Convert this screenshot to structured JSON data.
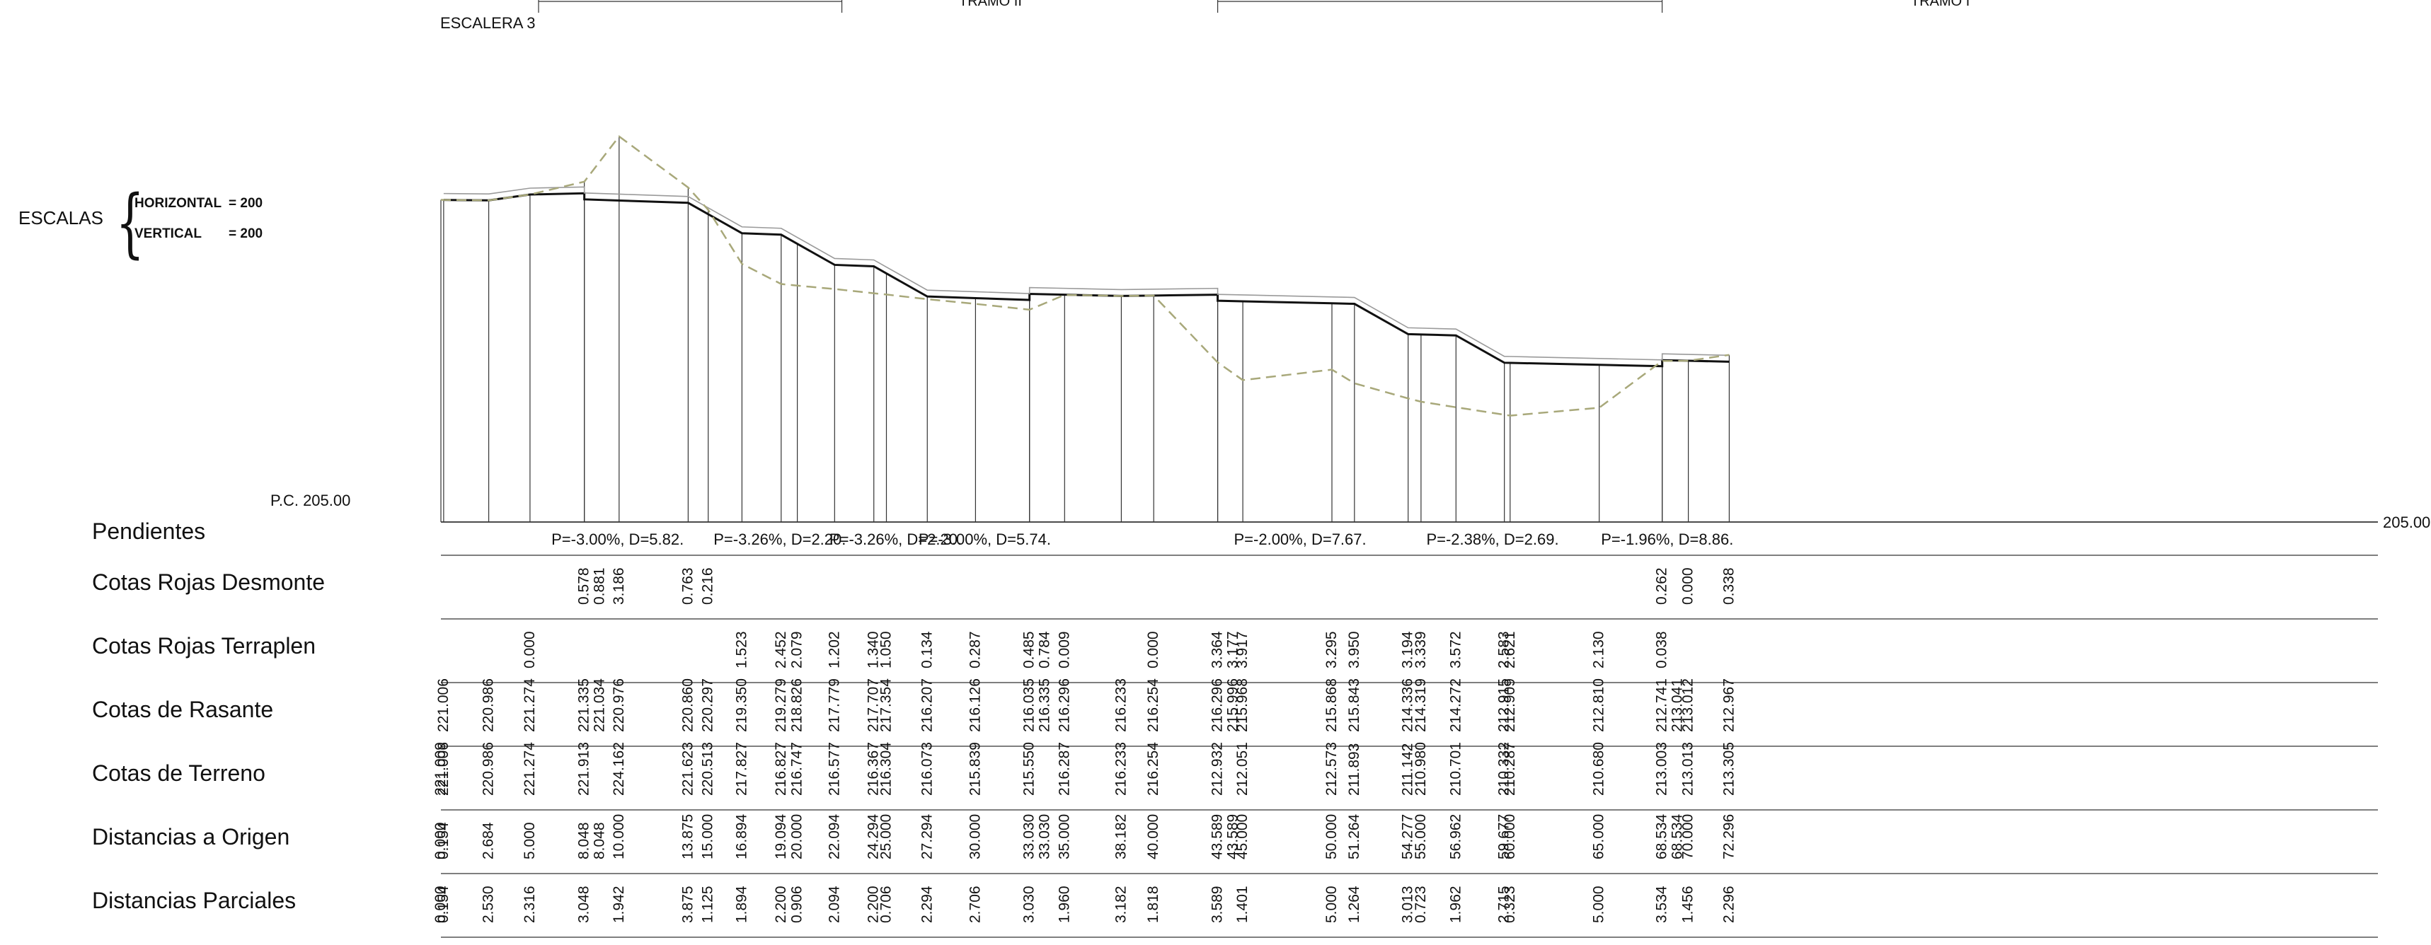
{
  "drawing": {
    "title": "ESCALERA 3",
    "reference_plane": "P.C. 205.00",
    "datum_right": "205.00",
    "tramo_labels": [
      "TRAMO II",
      "TRAMO I"
    ],
    "scales": {
      "label": "ESCALAS",
      "horizontal_label": "HORIZONTAL",
      "horizontal_value": "= 200",
      "vertical_label": "VERTICAL",
      "vertical_value": "= 200"
    }
  },
  "rows": {
    "pendientes": "Pendientes",
    "desmonte": "Cotas Rojas Desmonte",
    "terraplen": "Cotas Rojas Terraplen",
    "rasante": "Cotas de Rasante",
    "terreno": "Cotas de Terreno",
    "origen": "Distancias a Origen",
    "parciales": "Distancias Parciales"
  },
  "pendientes": [
    "P=-3.00%, D=5.82.",
    "P=-3.26%, D=2.20.",
    "P=-3.26%, D=2.20.",
    "P=-3.00%, D=5.74.",
    "P=-2.00%, D=7.67.",
    "P=-2.38%, D=2.69.",
    "P=-1.96%, D=8.86."
  ],
  "stations": [
    {
      "origen": "0.000",
      "parcial": "0.000",
      "terreno": "221.009",
      "rasante": "",
      "desmonte": "",
      "terraplen": ""
    },
    {
      "origen": "0.154",
      "parcial": "0.154",
      "terreno": "221.006",
      "rasante": "221.006",
      "desmonte": "",
      "terraplen": ""
    },
    {
      "origen": "2.684",
      "parcial": "2.530",
      "terreno": "220.986",
      "rasante": "220.986",
      "desmonte": "",
      "terraplen": ""
    },
    {
      "origen": "5.000",
      "parcial": "2.316",
      "terreno": "221.274",
      "rasante": "221.274",
      "desmonte": "",
      "terraplen": "0.000"
    },
    {
      "origen": "8.048",
      "parcial": "3.048",
      "terreno": "221.913",
      "rasante": "221.335",
      "desmonte": "0.578",
      "terraplen": ""
    },
    {
      "origen": "8.048",
      "parcial": "",
      "terreno": "",
      "rasante": "221.034",
      "desmonte": "0.881",
      "terraplen": ""
    },
    {
      "origen": "10.000",
      "parcial": "1.942",
      "terreno": "224.162",
      "rasante": "220.976",
      "desmonte": "3.186",
      "terraplen": ""
    },
    {
      "origen": "13.875",
      "parcial": "3.875",
      "terreno": "221.623",
      "rasante": "220.860",
      "desmonte": "0.763",
      "terraplen": ""
    },
    {
      "origen": "15.000",
      "parcial": "1.125",
      "terreno": "220.513",
      "rasante": "220.297",
      "desmonte": "0.216",
      "terraplen": ""
    },
    {
      "origen": "16.894",
      "parcial": "1.894",
      "terreno": "217.827",
      "rasante": "219.350",
      "desmonte": "",
      "terraplen": "1.523"
    },
    {
      "origen": "19.094",
      "parcial": "2.200",
      "terreno": "216.827",
      "rasante": "219.279",
      "desmonte": "",
      "terraplen": "2.452"
    },
    {
      "origen": "20.000",
      "parcial": "0.906",
      "terreno": "216.747",
      "rasante": "218.826",
      "desmonte": "",
      "terraplen": "2.079"
    },
    {
      "origen": "22.094",
      "parcial": "2.094",
      "terreno": "216.577",
      "rasante": "217.779",
      "desmonte": "",
      "terraplen": "1.202"
    },
    {
      "origen": "24.294",
      "parcial": "2.200",
      "terreno": "216.367",
      "rasante": "217.707",
      "desmonte": "",
      "terraplen": "1.340"
    },
    {
      "origen": "25.000",
      "parcial": "0.706",
      "terreno": "216.304",
      "rasante": "217.354",
      "desmonte": "",
      "terraplen": "1.050"
    },
    {
      "origen": "27.294",
      "parcial": "2.294",
      "terreno": "216.073",
      "rasante": "216.207",
      "desmonte": "",
      "terraplen": "0.134"
    },
    {
      "origen": "30.000",
      "parcial": "2.706",
      "terreno": "215.839",
      "rasante": "216.126",
      "desmonte": "",
      "terraplen": "0.287"
    },
    {
      "origen": "33.030",
      "parcial": "3.030",
      "terreno": "215.550",
      "rasante": "216.035",
      "desmonte": "",
      "terraplen": "0.485"
    },
    {
      "origen": "33.030",
      "parcial": "",
      "terreno": "",
      "rasante": "216.335",
      "desmonte": "",
      "terraplen": "0.784"
    },
    {
      "origen": "35.000",
      "parcial": "1.960",
      "terreno": "216.287",
      "rasante": "216.296",
      "desmonte": "",
      "terraplen": "0.009"
    },
    {
      "origen": "38.182",
      "parcial": "3.182",
      "terreno": "216.233",
      "rasante": "216.233",
      "desmonte": "",
      "terraplen": ""
    },
    {
      "origen": "40.000",
      "parcial": "1.818",
      "terreno": "216.254",
      "rasante": "216.254",
      "desmonte": "",
      "terraplen": "0.000"
    },
    {
      "origen": "43.589",
      "parcial": "3.589",
      "terreno": "212.932",
      "rasante": "216.296",
      "desmonte": "",
      "terraplen": "3.364"
    },
    {
      "origen": "43.589",
      "parcial": "",
      "terreno": "",
      "rasante": "215.996",
      "desmonte": "",
      "terraplen": "3.177"
    },
    {
      "origen": "45.000",
      "parcial": "1.401",
      "terreno": "212.051",
      "rasante": "215.968",
      "desmonte": "",
      "terraplen": "3.917"
    },
    {
      "origen": "50.000",
      "parcial": "5.000",
      "terreno": "212.573",
      "rasante": "215.868",
      "desmonte": "",
      "terraplen": "3.295"
    },
    {
      "origen": "51.264",
      "parcial": "1.264",
      "terreno": "211.893",
      "rasante": "215.843",
      "desmonte": "",
      "terraplen": "3.950"
    },
    {
      "origen": "54.277",
      "parcial": "3.013",
      "terreno": "211.142",
      "rasante": "214.336",
      "desmonte": "",
      "terraplen": "3.194"
    },
    {
      "origen": "55.000",
      "parcial": "0.723",
      "terreno": "210.980",
      "rasante": "214.319",
      "desmonte": "",
      "terraplen": "3.339"
    },
    {
      "origen": "56.962",
      "parcial": "1.962",
      "terreno": "210.701",
      "rasante": "214.272",
      "desmonte": "",
      "terraplen": "3.572"
    },
    {
      "origen": "59.677",
      "parcial": "2.715",
      "terreno": "210.332",
      "rasante": "212.915",
      "desmonte": "",
      "terraplen": "2.583"
    },
    {
      "origen": "60.000",
      "parcial": "0.323",
      "terreno": "210.287",
      "rasante": "212.909",
      "desmonte": "",
      "terraplen": "2.621"
    },
    {
      "origen": "65.000",
      "parcial": "5.000",
      "terreno": "210.680",
      "rasante": "212.810",
      "desmonte": "",
      "terraplen": "2.130"
    },
    {
      "origen": "68.534",
      "parcial": "3.534",
      "terreno": "213.003",
      "rasante": "212.741",
      "desmonte": "0.262",
      "terraplen": "0.038"
    },
    {
      "origen": "68.534",
      "parcial": "",
      "terreno": "",
      "rasante": "213.041",
      "desmonte": "",
      "terraplen": ""
    },
    {
      "origen": "70.000",
      "parcial": "1.456",
      "terreno": "213.013",
      "rasante": "213.012",
      "desmonte": "0.000",
      "terraplen": ""
    },
    {
      "origen": "72.296",
      "parcial": "2.296",
      "terreno": "213.305",
      "rasante": "212.967",
      "desmonte": "0.338",
      "terraplen": ""
    }
  ],
  "colors": {
    "line": "#111111",
    "terrain_dash": "#a8a87a",
    "stair_outline": "#9a9a9a"
  }
}
